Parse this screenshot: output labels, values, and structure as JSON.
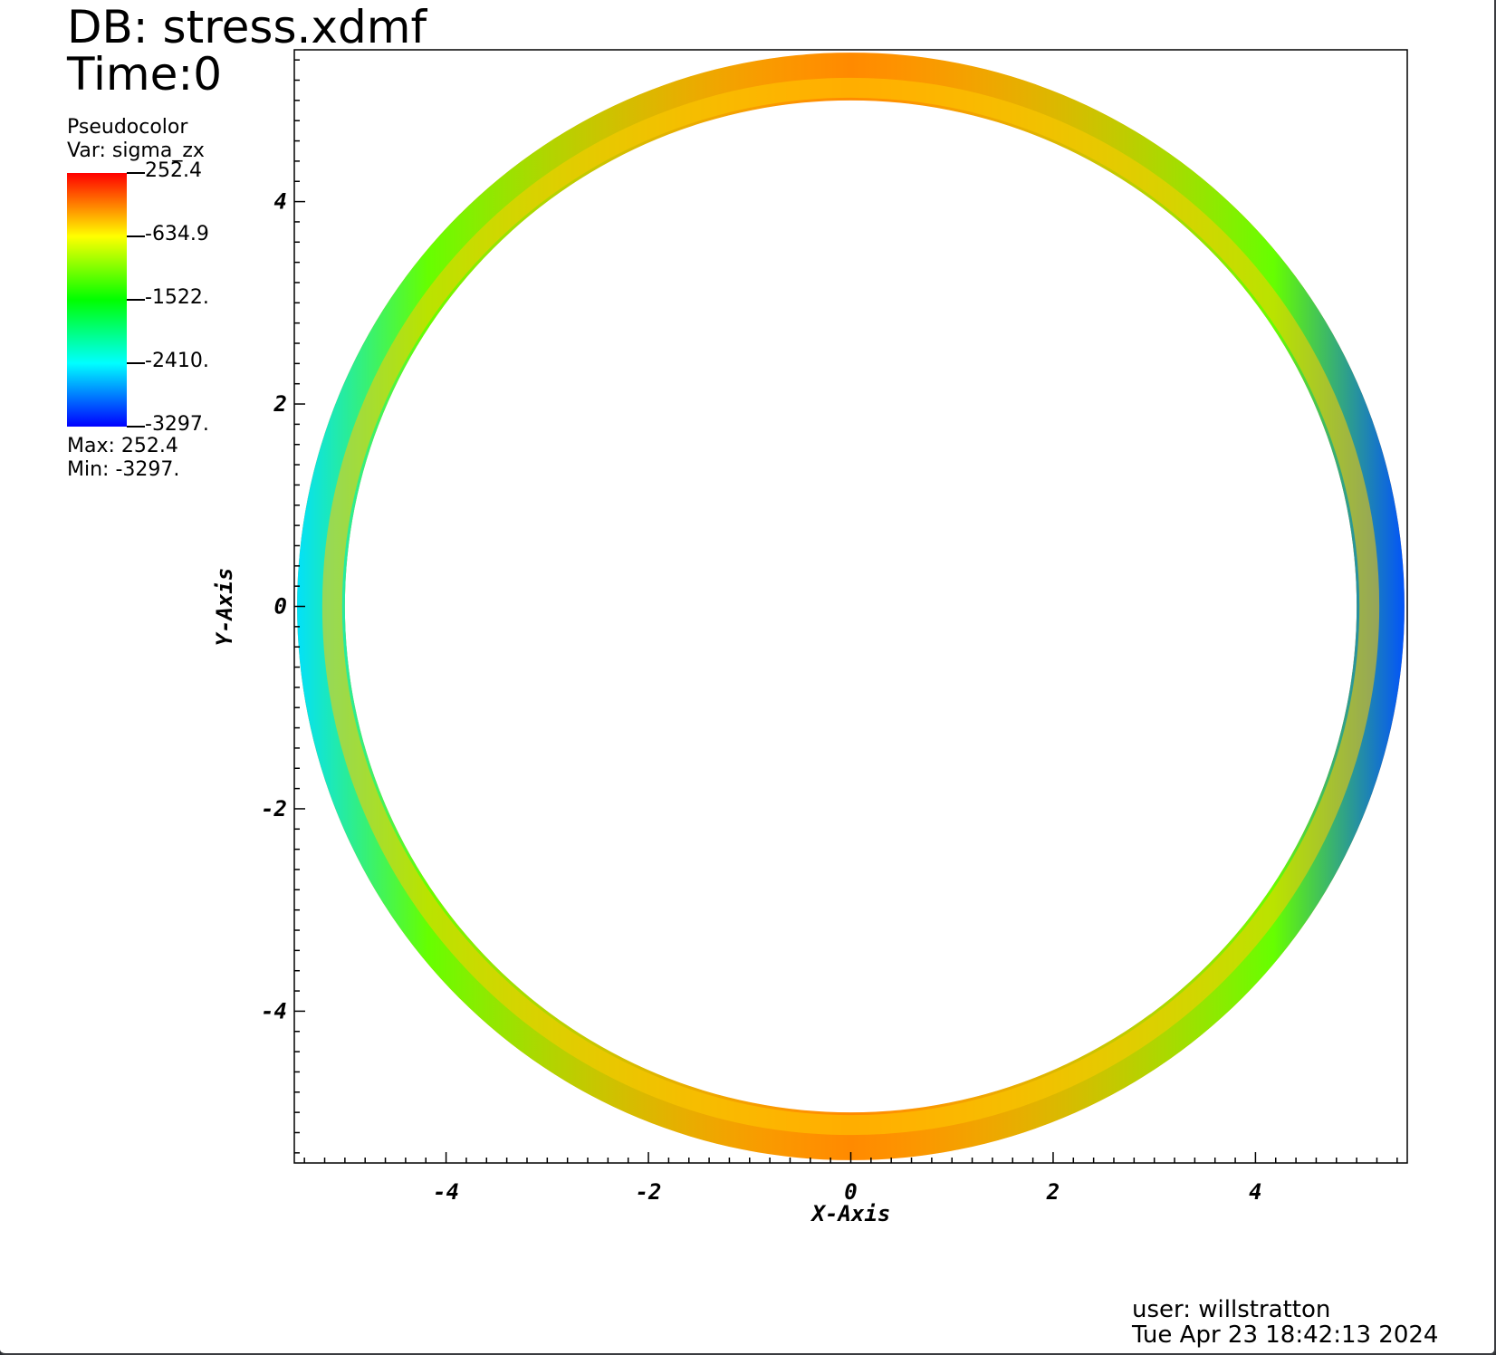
{
  "header": {
    "db_label": "DB: stress.xdmf",
    "time_label": "Time:0"
  },
  "legend": {
    "title": "Pseudocolor",
    "var_label": "Var: sigma_zx",
    "ticks": [
      "252.4",
      "-634.9",
      "-1522.",
      "-2410.",
      "-3297."
    ],
    "max_label": "Max:  252.4",
    "min_label": "Min: -3297.",
    "colormap": [
      "#ff0000",
      "#ffff00",
      "#00ff00",
      "#00ffff",
      "#0000ff"
    ]
  },
  "footer": {
    "user_label": "user: willstratton",
    "date_label": "Tue Apr 23 18:42:13 2024"
  },
  "chart_data": {
    "type": "heatmap",
    "plot_kind": "pseudocolor ring (annulus)",
    "variable": "sigma_zx",
    "xlabel": "X-Axis",
    "ylabel": "Y-Axis",
    "xlim": [
      -5.5,
      5.5
    ],
    "ylim": [
      -5.5,
      5.5
    ],
    "x_ticks": [
      -4,
      -2,
      0,
      2,
      4
    ],
    "y_ticks": [
      -4,
      -2,
      0,
      2,
      4
    ],
    "x_tick_labels": [
      "-4",
      "-2",
      "0",
      "2",
      "4"
    ],
    "y_tick_labels": [
      "-4",
      "-2",
      "0",
      "2",
      "4"
    ],
    "ring_inner_radius": 5.0,
    "ring_outer_radius": 5.5,
    "value_range": [
      -3297,
      252.4
    ],
    "pattern": "highest values (red/orange) at top and bottom, lowest (green/cyan/blue) along left and right outer edges",
    "grid": false,
    "legend_position": "top-left"
  }
}
